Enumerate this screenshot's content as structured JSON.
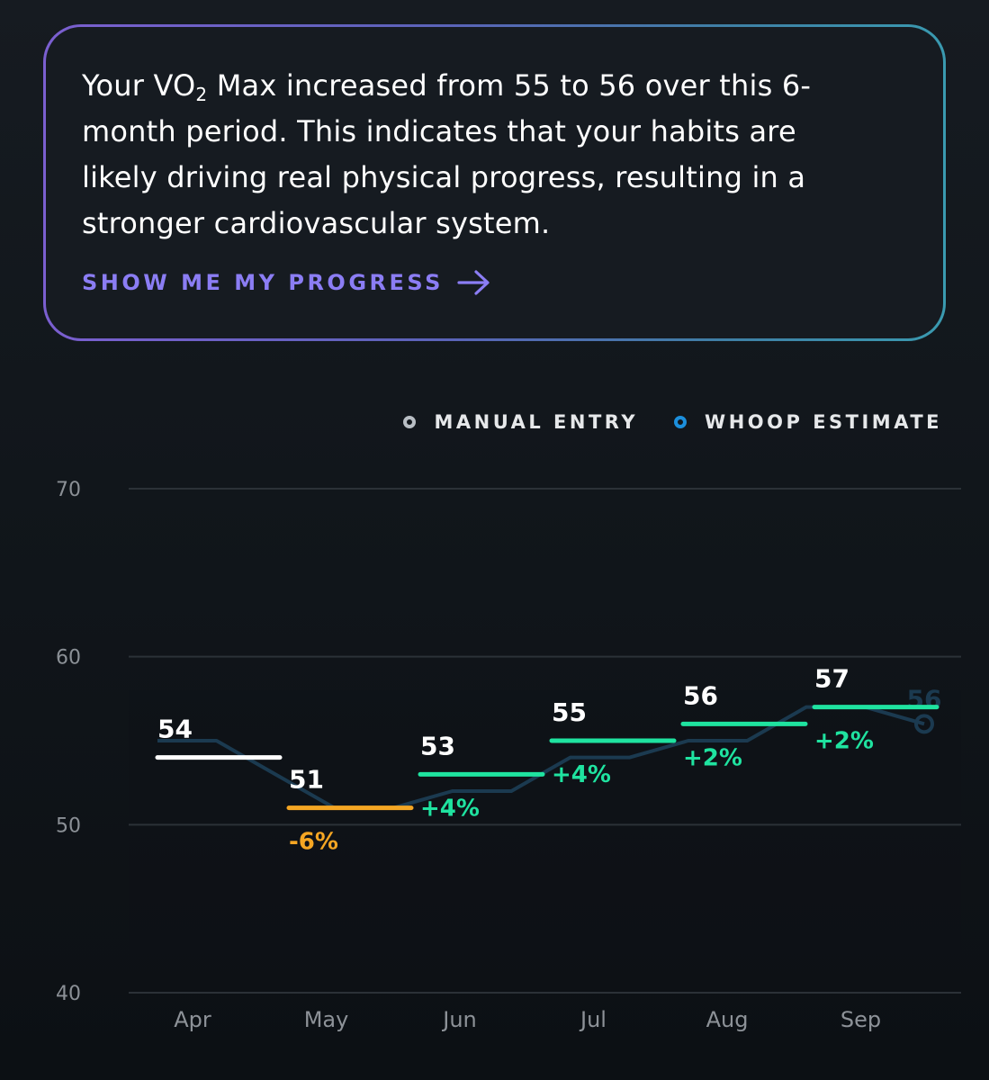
{
  "insight": {
    "text_prefix": "Your VO",
    "text_sub": "2",
    "text_rest": " Max increased from 55 to 56 over this 6-month period. This indicates that your habits are likely driving real physical progress, resulting in a stronger cardiovascular system.",
    "cta_label": "SHOW ME MY PROGRESS",
    "cta_icon": "arrow-right-icon"
  },
  "colors": {
    "manual": "#b8bec4",
    "whoop": "#1c8fdc",
    "decline": "#f5a623",
    "increase": "#1fe3a0",
    "baseline": "#ffffff",
    "cta": "#8b7df4",
    "estimate_line": "#1b3a50"
  },
  "legend": [
    {
      "label": "MANUAL ENTRY",
      "key": "manual"
    },
    {
      "label": "WHOOP ESTIMATE",
      "key": "whoop"
    }
  ],
  "chart_data": {
    "type": "line",
    "title": "",
    "xlabel": "",
    "ylabel": "",
    "ylim": [
      40,
      70
    ],
    "yticks": [
      40,
      50,
      60,
      70
    ],
    "categories": [
      "Apr",
      "May",
      "Jun",
      "Jul",
      "Aug",
      "Sep"
    ],
    "monthly": [
      {
        "month": "Apr",
        "value": 54,
        "change": ""
      },
      {
        "month": "May",
        "value": 51,
        "change": "-6%"
      },
      {
        "month": "Jun",
        "value": 53,
        "change": "+4%"
      },
      {
        "month": "Jul",
        "value": 55,
        "change": "+4%"
      },
      {
        "month": "Aug",
        "value": 56,
        "change": "+2%"
      },
      {
        "month": "Sep",
        "value": 57,
        "change": "+2%"
      }
    ],
    "series": [
      {
        "key": "whoop",
        "x": [
          "Apr 1",
          "Apr 15",
          "May 1",
          "May 15",
          "Jun 1",
          "Jun 15",
          "Jul 1",
          "Jul 15",
          "Aug 1",
          "Aug 15",
          "Sep 1",
          "Sep 10",
          "Sep 20",
          "Sep 30"
        ],
        "values": [
          55,
          55,
          53,
          51,
          51,
          52,
          52,
          54,
          54,
          55,
          55,
          57,
          57,
          56
        ]
      }
    ],
    "current_estimate": {
      "value": 56,
      "label": "56"
    }
  }
}
